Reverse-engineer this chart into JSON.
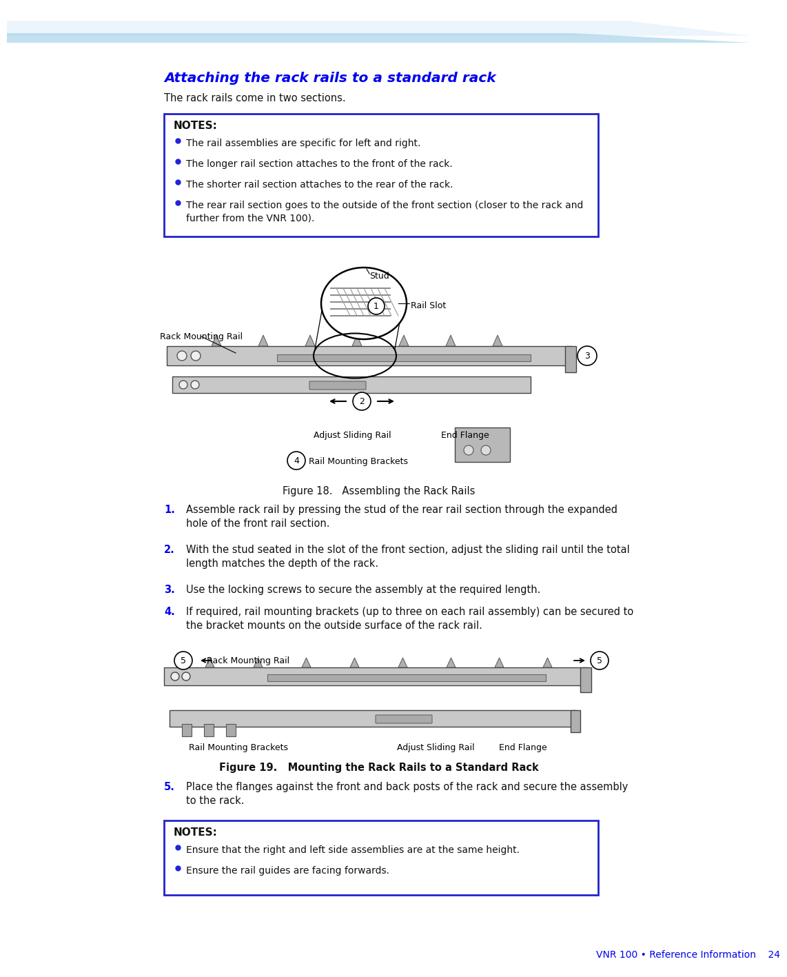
{
  "page_bg": "#ffffff",
  "blue_heading": "#0000EE",
  "blue_text": "#0000EE",
  "black_text": "#111111",
  "notes_border": "#2222CC",
  "bullet_color": "#2222DD",
  "title": "Attaching the rack rails to a standard rack",
  "subtitle": "The rack rails come in two sections.",
  "notes_title": "NOTES:",
  "notes_bullets": [
    "The rail assemblies are specific for left and right.",
    "The longer rail section attaches to the front of the rack.",
    "The shorter rail section attaches to the rear of the rack.",
    "The rear rail section goes to the outside of the front section (closer to the rack and\nfurther from the VNR 100)."
  ],
  "fig18_caption": "Figure 18.   Assembling the Rack Rails",
  "fig19_caption": "Figure 19.   Mounting the Rack Rails to a Standard Rack",
  "steps": [
    {
      "num": "1.",
      "text": "Assemble rack rail by pressing the stud of the rear rail section through the expanded\nhole of the front rail section."
    },
    {
      "num": "2.",
      "text": "With the stud seated in the slot of the front section, adjust the sliding rail until the total\nlength matches the depth of the rack."
    },
    {
      "num": "3.",
      "text": "Use the locking screws to secure the assembly at the required length."
    },
    {
      "num": "4.",
      "text": "If required, rail mounting brackets (up to three on each rail assembly) can be secured to\nthe bracket mounts on the outside surface of the rack rail."
    },
    {
      "num": "5.",
      "text": "Place the flanges against the front and back posts of the rack and secure the assembly\nto the rack."
    }
  ],
  "notes2_title": "NOTES:",
  "notes2_bullets": [
    "Ensure that the right and left side assemblies are at the same height.",
    "Ensure the rail guides are facing forwards."
  ],
  "footer_text": "VNR 100 • Reference Information    24"
}
